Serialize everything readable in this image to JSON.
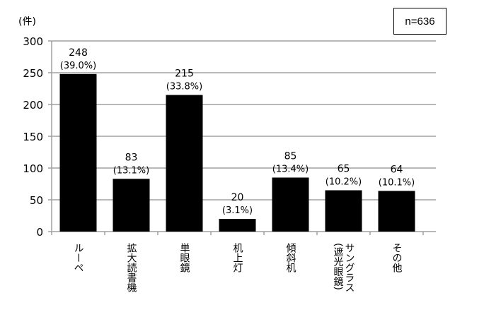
{
  "chart_data": {
    "type": "bar",
    "ylabel": "(件)",
    "annotation": "n=636",
    "categories": [
      "ルーペ",
      "拡大読書機",
      "単眼鏡",
      "机上灯",
      "傾斜机",
      "サングラス\n(遮光眼鏡)",
      "その他"
    ],
    "values": [
      248,
      83,
      215,
      20,
      85,
      65,
      64
    ],
    "value_labels": [
      "248",
      "83",
      "215",
      "20",
      "85",
      "65",
      "64"
    ],
    "percent_labels": [
      "(39.0%)",
      "(13.1%)",
      "(33.8%)",
      "(3.1%)",
      "(13.4%)",
      "(10.2%)",
      "(10.1%)"
    ],
    "ylim": [
      0,
      300
    ],
    "yticks": [
      0,
      50,
      100,
      150,
      200,
      250,
      300
    ],
    "grid": true,
    "bar_color": "#000000",
    "grid_color": "#a0a0a0"
  }
}
